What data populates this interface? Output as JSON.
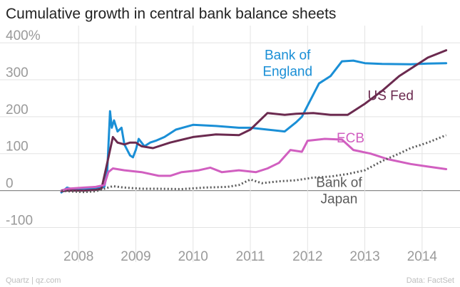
{
  "chart_data": {
    "type": "line",
    "title": "Cumulative growth in central bank balance sheets",
    "xlabel": "",
    "ylabel": "",
    "xlim": [
      2007.6,
      2014.75
    ],
    "ylim": [
      -130,
      410
    ],
    "x_ticks": [
      {
        "value": 2008.2,
        "label": "2008"
      },
      {
        "value": 2009.2,
        "label": "2009"
      },
      {
        "value": 2010.2,
        "label": "2010"
      },
      {
        "value": 2011.2,
        "label": "2011"
      },
      {
        "value": 2012.2,
        "label": "2012"
      },
      {
        "value": 2013.2,
        "label": "2013"
      },
      {
        "value": 2014.2,
        "label": "2014"
      }
    ],
    "y_ticks": [
      {
        "value": 400,
        "label": "400%"
      },
      {
        "value": 300,
        "label": "300"
      },
      {
        "value": 200,
        "label": "200"
      },
      {
        "value": 100,
        "label": "100"
      },
      {
        "value": 0,
        "label": "0"
      },
      {
        "value": -100,
        "label": "-100"
      }
    ],
    "grid": true,
    "series": [
      {
        "name": "Bank of England",
        "label_lines": [
          "Bank of",
          "England"
        ],
        "color": "#1a8fd6",
        "style": "solid",
        "x": [
          2007.9,
          2008.0,
          2008.1,
          2008.3,
          2008.5,
          2008.65,
          2008.7,
          2008.75,
          2008.78,
          2008.82,
          2008.88,
          2008.95,
          2009.0,
          2009.1,
          2009.15,
          2009.2,
          2009.25,
          2009.35,
          2009.45,
          2009.55,
          2009.7,
          2009.9,
          2010.2,
          2010.6,
          2011.0,
          2011.2,
          2011.5,
          2011.8,
          2012.0,
          2012.1,
          2012.2,
          2012.4,
          2012.6,
          2012.8,
          2013.0,
          2013.2,
          2013.5,
          2014.0,
          2014.3,
          2014.62
        ],
        "y": [
          -5,
          8,
          3,
          6,
          5,
          10,
          50,
          215,
          170,
          190,
          160,
          170,
          125,
          95,
          90,
          110,
          140,
          120,
          130,
          135,
          145,
          165,
          178,
          175,
          170,
          170,
          165,
          160,
          185,
          200,
          230,
          290,
          310,
          350,
          352,
          345,
          343,
          342,
          344,
          345
        ]
      },
      {
        "name": "US Fed",
        "label_lines": [
          "US Fed"
        ],
        "color": "#6b2a4f",
        "style": "solid",
        "x": [
          2007.9,
          2008.0,
          2008.3,
          2008.5,
          2008.6,
          2008.68,
          2008.75,
          2008.8,
          2008.88,
          2009.0,
          2009.1,
          2009.2,
          2009.3,
          2009.5,
          2009.8,
          2010.2,
          2010.6,
          2011.0,
          2011.2,
          2011.5,
          2011.8,
          2012.0,
          2012.3,
          2012.6,
          2012.9,
          2013.0,
          2013.2,
          2013.5,
          2013.8,
          2014.0,
          2014.3,
          2014.62
        ],
        "y": [
          -2,
          0,
          0,
          2,
          5,
          60,
          110,
          145,
          130,
          125,
          130,
          130,
          120,
          115,
          130,
          145,
          152,
          150,
          165,
          210,
          205,
          208,
          210,
          205,
          205,
          215,
          235,
          270,
          310,
          330,
          360,
          380
        ]
      },
      {
        "name": "ECB",
        "label_lines": [
          "ECB"
        ],
        "color": "#d15fc0",
        "style": "solid",
        "x": [
          2007.9,
          2008.0,
          2008.3,
          2008.5,
          2008.65,
          2008.72,
          2008.8,
          2009.0,
          2009.3,
          2009.6,
          2009.8,
          2010.0,
          2010.3,
          2010.5,
          2010.7,
          2011.0,
          2011.3,
          2011.5,
          2011.7,
          2011.9,
          2012.1,
          2012.2,
          2012.5,
          2012.8,
          2013.0,
          2013.3,
          2013.6,
          2014.0,
          2014.3,
          2014.62
        ],
        "y": [
          0,
          5,
          8,
          10,
          15,
          50,
          60,
          55,
          50,
          40,
          40,
          50,
          55,
          62,
          50,
          55,
          50,
          60,
          75,
          110,
          105,
          135,
          140,
          138,
          110,
          100,
          85,
          72,
          65,
          58
        ]
      },
      {
        "name": "Bank of Japan",
        "label_lines": [
          "Bank of",
          "Japan"
        ],
        "color": "#5c5c5c",
        "style": "dotted",
        "x": [
          2007.9,
          2008.0,
          2008.3,
          2008.5,
          2008.8,
          2009.0,
          2009.3,
          2009.6,
          2010.0,
          2010.4,
          2010.8,
          2011.0,
          2011.2,
          2011.4,
          2011.7,
          2012.0,
          2012.3,
          2012.6,
          2012.9,
          2013.2,
          2013.5,
          2013.8,
          2014.0,
          2014.3,
          2014.62
        ],
        "y": [
          0,
          -2,
          -4,
          -2,
          12,
          8,
          5,
          5,
          4,
          8,
          10,
          15,
          30,
          20,
          25,
          28,
          35,
          38,
          45,
          55,
          80,
          100,
          115,
          130,
          150
        ]
      }
    ],
    "annotations": [
      {
        "series": "Bank of England",
        "text": [
          "Bank of",
          "England"
        ],
        "x": 2011.85,
        "y": 355
      },
      {
        "series": "US Fed",
        "text": [
          "US Fed"
        ],
        "x": 2013.65,
        "y": 245
      },
      {
        "series": "ECB",
        "text": [
          "ECB"
        ],
        "x": 2012.95,
        "y": 130
      },
      {
        "series": "Bank of Japan",
        "text": [
          "Bank of",
          "Japan"
        ],
        "x": 2012.75,
        "y": 10
      }
    ]
  },
  "footer": {
    "source_left": "Quartz | qz.com",
    "source_right": "Data: FactSet"
  }
}
